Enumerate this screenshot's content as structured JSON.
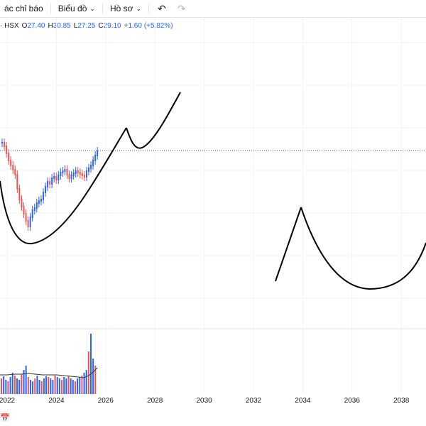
{
  "toolbar": {
    "indicators_label": "ác chỉ báo",
    "chart_label": "Biểu đồ",
    "profile_label": "Hồ sơ"
  },
  "legend": {
    "exchange": "· HSX",
    "open_label": "O",
    "open": "27.40",
    "high_label": "H",
    "high": "30.85",
    "low_label": "L",
    "low": "27.25",
    "close_label": "C",
    "close": "29.10",
    "change": "+1.60 (+5.82%)"
  },
  "chart_data": {
    "type": "candlestick",
    "x_ticks": [
      "2022",
      "2024",
      "2026",
      "2028",
      "2030",
      "2032",
      "2034",
      "2036",
      "2038"
    ],
    "last_close": 29.1,
    "colors": {
      "up": "#2962ff",
      "down": "#ef5350",
      "drawing": "#000000",
      "price_line": "#2962ff"
    }
  }
}
